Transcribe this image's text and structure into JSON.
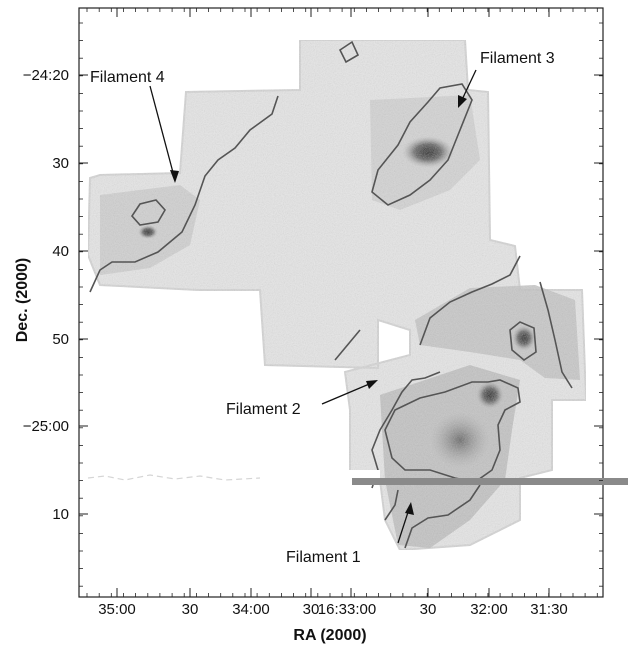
{
  "axes": {
    "xlabel": "RA (2000)",
    "ylabel": "Dec. (2000)",
    "x_ticks": [
      "35:00",
      "30",
      "34:00",
      "30",
      "16:33:00",
      "30",
      "32:00",
      "31:30"
    ],
    "y_ticks": [
      "−24:20",
      "30",
      "40",
      "50",
      "−25:00",
      "10"
    ]
  },
  "annotations": [
    {
      "id": "filament-4",
      "text": "Filament 4"
    },
    {
      "id": "filament-3",
      "text": "Filament 3"
    },
    {
      "id": "filament-2",
      "text": "Filament 2"
    },
    {
      "id": "filament-1",
      "text": "Filament 1"
    }
  ],
  "colors": {
    "map_light": "#e9e9e9",
    "map_mid": "#b9b9b9",
    "map_dark": "#222222",
    "contour": "#555555",
    "frame": "#222222",
    "artifact_bar": "#8a8a8a"
  }
}
